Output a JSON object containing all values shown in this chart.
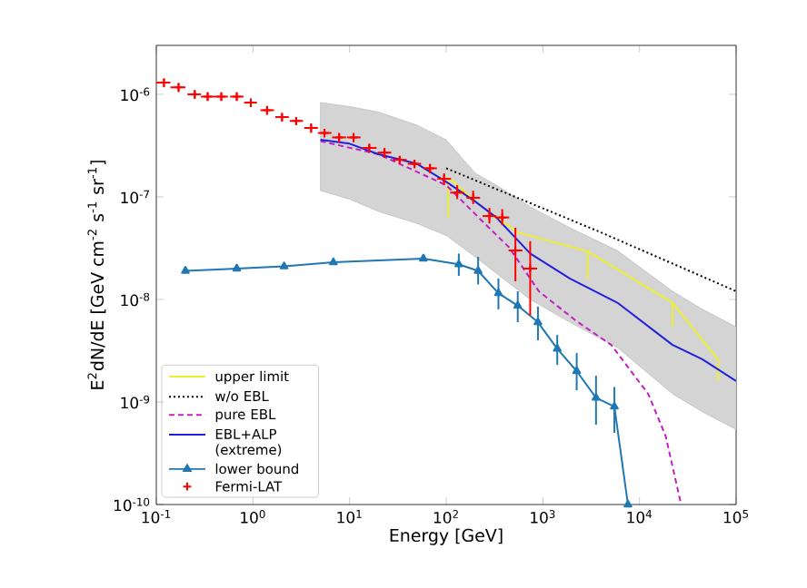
{
  "chart_data": {
    "type": "line",
    "xlabel": "Energy [GeV]",
    "ylabel": "E$^{2}$dN/dE [GeV cm$^{-2}$ s$^{-1}$ sr$^{-1}$]",
    "log": "xy",
    "xlim": [
      0.1,
      100000
    ],
    "ylim": [
      1e-10,
      3e-06
    ],
    "xticks": [
      {
        "value": 0.1,
        "label": "10$^{-1}$"
      },
      {
        "value": 1,
        "label": "10$^{0}$"
      },
      {
        "value": 10,
        "label": "10$^{1}$"
      },
      {
        "value": 100,
        "label": "10$^{2}$"
      },
      {
        "value": 1000,
        "label": "10$^{3}$"
      },
      {
        "value": 10000,
        "label": "10$^{4}$"
      },
      {
        "value": 100000,
        "label": "10$^{5}$"
      }
    ],
    "yticks": [
      {
        "value": 1e-10,
        "label": "10$^{-10}$"
      },
      {
        "value": 1e-09,
        "label": "10$^{-9}$"
      },
      {
        "value": 1e-08,
        "label": "10$^{-8}$"
      },
      {
        "value": 1e-07,
        "label": "10$^{-7}$"
      },
      {
        "value": 1e-06,
        "label": "10$^{-6}$"
      }
    ],
    "legend": "bottom left",
    "series": [
      {
        "name": "upper limit",
        "color": "#eeee30",
        "line_style": "solid",
        "marker": "none",
        "x": [
          105,
          210,
          550,
          2900,
          22000,
          65000
        ],
        "values": [
          1.55e-07,
          8.7e-08,
          4.5e-08,
          2.95e-08,
          9.3e-09,
          2.6e-09
        ],
        "errors": [
          [
            6.3e-08,
            1.55e-07
          ],
          null,
          null,
          [
            1.6e-08,
            2.95e-08
          ],
          [
            5.4e-09,
            9.3e-09
          ],
          [
            1.6e-09,
            2.6e-09
          ]
        ]
      },
      {
        "name": "w/o EBL",
        "color": "#000000",
        "line_style": "dotted",
        "marker": "none",
        "x": [
          100,
          4000,
          100000
        ],
        "values": [
          1.9e-07,
          4.5e-08,
          1.2e-08
        ]
      },
      {
        "name": "pure EBL",
        "color": "#c020c0",
        "line_style": "dashed",
        "marker": "none",
        "x": [
          5,
          20,
          100,
          250,
          450,
          740,
          910,
          2200,
          5100,
          12300,
          18600,
          27000
        ],
        "values": [
          3.5e-07,
          2.6e-07,
          1.3e-07,
          5.5e-08,
          3.2e-08,
          1.6e-08,
          1.2e-08,
          6.2e-09,
          3.6e-09,
          1.2e-09,
          4.7e-10,
          1e-10
        ]
      },
      {
        "name": "EBL+ALP (extreme)",
        "color": "#2020dd",
        "line_style": "solid",
        "marker": "none",
        "x": [
          5,
          10,
          20,
          50,
          100,
          200,
          330,
          740,
          1900,
          5900,
          22000,
          45000,
          100000
        ],
        "values": [
          3.6e-07,
          3.3e-07,
          2.6e-07,
          2.1e-07,
          1.4e-07,
          9e-08,
          6.3e-08,
          2.8e-08,
          1.6e-08,
          9.3e-09,
          3.6e-09,
          2.6e-09,
          1.6e-09
        ],
        "upper": [
          8.3e-07,
          7.6e-07,
          6.7e-07,
          5e-07,
          3.6e-07,
          1.7e-07,
          1.3e-07,
          8e-08,
          5e-08,
          3e-08,
          1.2e-08,
          8e-09,
          5.4e-09
        ],
        "lower": [
          1.15e-07,
          9.5e-08,
          7.2e-08,
          5.5e-08,
          4.2e-08,
          2.6e-08,
          1.8e-08,
          1e-08,
          6e-09,
          3.4e-09,
          1.2e-09,
          8e-10,
          5.4e-10
        ]
      },
      {
        "name": "lower bound",
        "color": "#1f77b4",
        "line_style": "solid",
        "marker": "triangle",
        "x": [
          0.2,
          0.68,
          2.1,
          6.8,
          58,
          135,
          214,
          347,
          550,
          890,
          1410,
          2240,
          3550,
          5500,
          7600
        ],
        "values": [
          1.9e-08,
          2e-08,
          2.1e-08,
          2.3e-08,
          2.5e-08,
          2.2e-08,
          1.9e-08,
          1.15e-08,
          8.7e-09,
          6e-09,
          3.3e-09,
          2e-09,
          1.1e-09,
          9e-10,
          1e-10
        ],
        "errors": [
          null,
          null,
          null,
          null,
          null,
          [
            1.7e-08,
            2.8e-08
          ],
          [
            1.4e-08,
            2.6e-08
          ],
          [
            8e-09,
            1.6e-08
          ],
          [
            6e-09,
            1.2e-08
          ],
          [
            4e-09,
            8.5e-09
          ],
          [
            2.3e-09,
            4.5e-09
          ],
          [
            1.3e-09,
            3e-09
          ],
          [
            6e-10,
            1.8e-09
          ],
          [
            5e-10,
            1.4e-09
          ],
          null
        ]
      },
      {
        "name": "Fermi-LAT",
        "type": "scatter",
        "color": "#ff0000",
        "x": [
          0.12,
          0.17,
          0.25,
          0.34,
          0.47,
          0.68,
          0.95,
          1.4,
          2.0,
          2.8,
          4.0,
          5.5,
          7.8,
          11,
          16,
          23,
          33,
          47,
          68,
          95,
          130,
          190,
          280,
          380,
          520,
          740
        ],
        "values": [
          1.3e-06,
          1.17e-06,
          1e-06,
          9.5e-07,
          9.5e-07,
          9.5e-07,
          8.3e-07,
          7e-07,
          6e-07,
          5.5e-07,
          4.7e-07,
          4.2e-07,
          3.8e-07,
          3.8e-07,
          3e-07,
          2.7e-07,
          2.3e-07,
          2.1e-07,
          1.9e-07,
          1.5e-07,
          1.1e-07,
          9.8e-08,
          6.5e-08,
          6.3e-08,
          3e-08,
          2e-08
        ],
        "errors": [
          [
            1.17e-06,
            1.43e-06
          ],
          [
            1.05e-06,
            1.29e-06
          ],
          [
            9e-07,
            1.1e-06
          ],
          [
            8.6e-07,
            1.05e-06
          ],
          [
            8.6e-07,
            1.05e-06
          ],
          [
            8.6e-07,
            1.05e-06
          ],
          [
            7.5e-07,
            9.1e-07
          ],
          [
            6.3e-07,
            7.7e-07
          ],
          [
            5.4e-07,
            6.6e-07
          ],
          [
            5e-07,
            6e-07
          ],
          [
            4.2e-07,
            5.2e-07
          ],
          [
            3.8e-07,
            4.6e-07
          ],
          [
            3.4e-07,
            4.2e-07
          ],
          [
            3.4e-07,
            4.2e-07
          ],
          [
            2.7e-07,
            3.3e-07
          ],
          [
            2.4e-07,
            3e-07
          ],
          [
            2.1e-07,
            2.5e-07
          ],
          [
            1.9e-07,
            2.3e-07
          ],
          [
            1.7e-07,
            2.1e-07
          ],
          [
            1.3e-07,
            1.7e-07
          ],
          [
            9.5e-08,
            1.3e-07
          ],
          [
            8.5e-08,
            1.15e-07
          ],
          [
            5.5e-08,
            7.8e-08
          ],
          [
            5.3e-08,
            7.6e-08
          ],
          [
            1.5e-08,
            5e-08
          ],
          [
            7e-09,
            3.7e-08
          ]
        ],
        "xerrors": [
          [
            0.1,
            0.14
          ],
          [
            0.14,
            0.2
          ],
          [
            0.21,
            0.29
          ],
          [
            0.29,
            0.4
          ],
          [
            0.4,
            0.55
          ],
          [
            0.58,
            0.8
          ],
          [
            0.81,
            1.1
          ],
          [
            1.2,
            1.65
          ],
          [
            1.7,
            2.35
          ],
          [
            2.4,
            3.3
          ],
          [
            3.4,
            4.7
          ],
          [
            4.7,
            6.5
          ],
          [
            6.6,
            9.2
          ],
          [
            9.4,
            13
          ],
          [
            13.6,
            19
          ],
          [
            19.5,
            27
          ],
          [
            28,
            39
          ],
          [
            40,
            55
          ],
          [
            58,
            80
          ],
          [
            81,
            112
          ],
          [
            110,
            153
          ],
          [
            162,
            224
          ],
          [
            238,
            330
          ],
          [
            323,
            448
          ],
          [
            442,
            614
          ],
          [
            629,
            873
          ]
        ]
      }
    ]
  }
}
